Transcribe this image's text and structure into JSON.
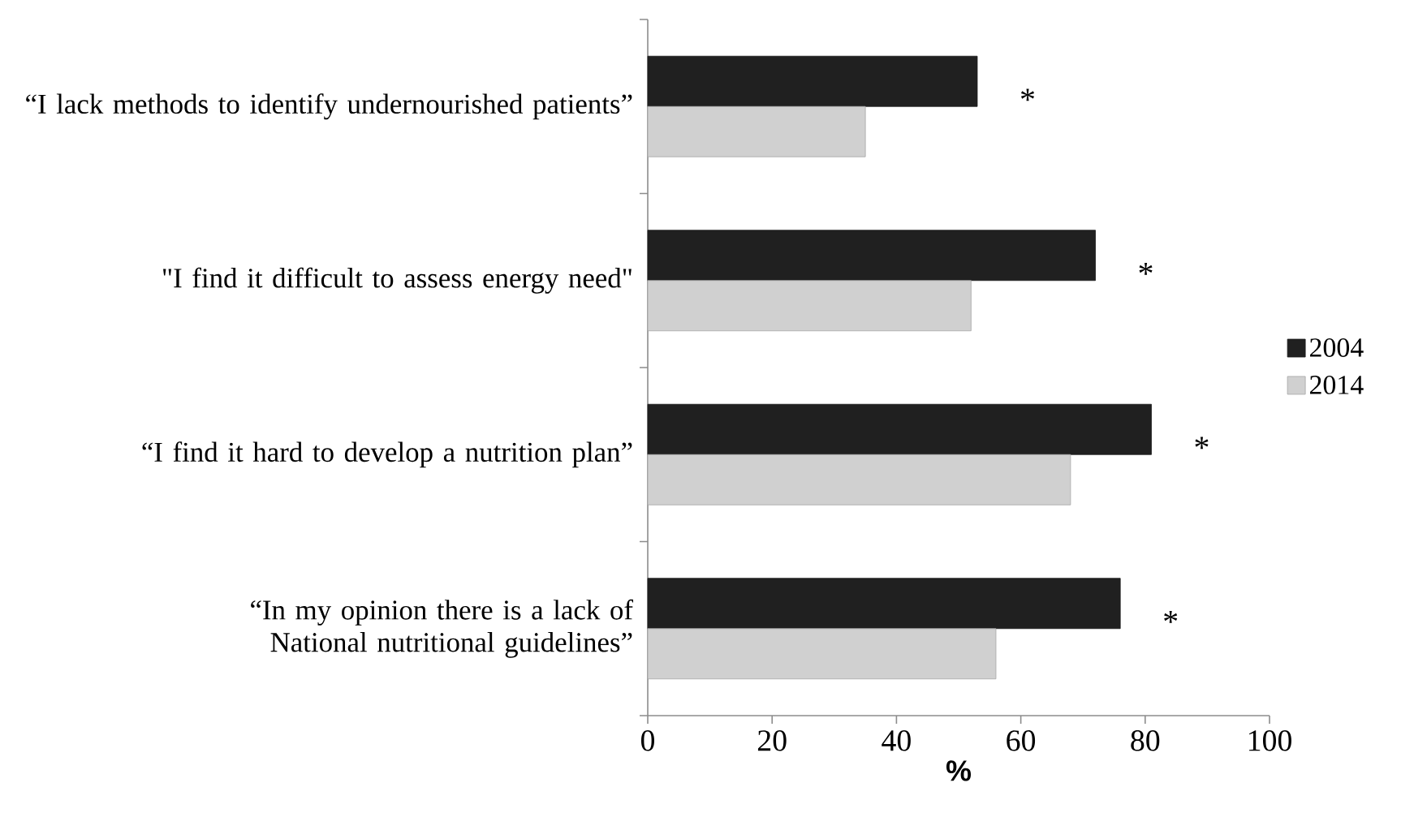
{
  "chart_data": {
    "type": "bar",
    "orientation": "horizontal",
    "categories": [
      "“I lack methods to identify undernourished patients”",
      "\"I find it difficult to assess energy need\"",
      "“I find it hard to develop a nutrition plan”",
      "“In my opinion there is a lack of National nutritional guidelines”"
    ],
    "series": [
      {
        "name": "2004",
        "color": "#202020",
        "values": [
          53,
          72,
          81,
          76
        ]
      },
      {
        "name": "2014",
        "color": "#d0d0d0",
        "values": [
          35,
          52,
          68,
          56
        ]
      }
    ],
    "xlabel": "%",
    "xlim": [
      0,
      100
    ],
    "xticks": [
      0,
      20,
      40,
      60,
      80,
      100
    ],
    "legend": "right",
    "grid": false,
    "annotations": [
      "*",
      "*",
      "*",
      "*"
    ]
  }
}
